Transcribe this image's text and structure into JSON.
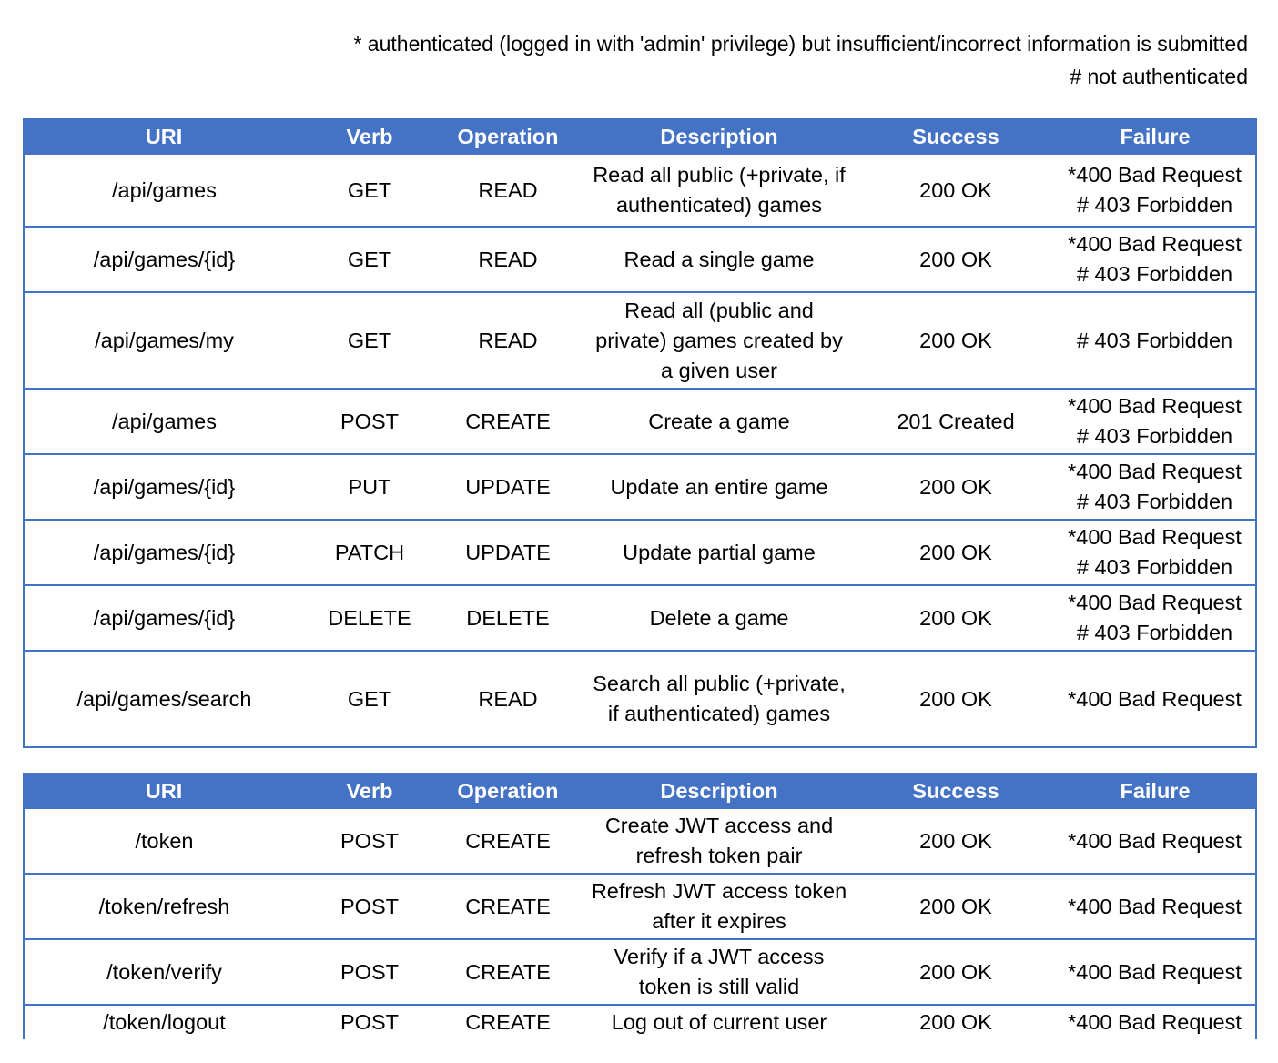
{
  "legend": {
    "line1": "* authenticated (logged in with 'admin' privilege) but insufficient/incorrect information is submitted",
    "line2": "# not authenticated"
  },
  "tables": [
    {
      "headers": [
        "URI",
        "Verb",
        "Operation",
        "Description",
        "Success",
        "Failure"
      ],
      "rows": [
        {
          "uri": "/api/games",
          "verb": "GET",
          "operation": "READ",
          "description": [
            "Read all public (+private, if",
            "authenticated) games"
          ],
          "success": "200 OK",
          "failure": [
            "*400 Bad Request",
            "# 403 Forbidden"
          ]
        },
        {
          "uri": "/api/games/{id}",
          "verb": "GET",
          "operation": "READ",
          "description": [
            "Read a single game"
          ],
          "success": "200 OK",
          "failure": [
            "*400 Bad Request",
            "# 403 Forbidden"
          ]
        },
        {
          "uri": "/api/games/my",
          "verb": "GET",
          "operation": "READ",
          "description": [
            "Read all (public and",
            "private) games created by",
            "a given user"
          ],
          "success": "200 OK",
          "failure": [
            "# 403 Forbidden"
          ]
        },
        {
          "uri": "/api/games",
          "verb": "POST",
          "operation": "CREATE",
          "description": [
            "Create a game"
          ],
          "success": "201 Created",
          "failure": [
            "*400 Bad Request",
            "# 403 Forbidden"
          ]
        },
        {
          "uri": "/api/games/{id}",
          "verb": "PUT",
          "operation": "UPDATE",
          "description": [
            "Update an entire game"
          ],
          "success": "200 OK",
          "failure": [
            "*400 Bad Request",
            "# 403 Forbidden"
          ]
        },
        {
          "uri": "/api/games/{id}",
          "verb": "PATCH",
          "operation": "UPDATE",
          "description": [
            "Update partial game"
          ],
          "success": "200 OK",
          "failure": [
            "*400 Bad Request",
            "# 403 Forbidden"
          ]
        },
        {
          "uri": "/api/games/{id}",
          "verb": "DELETE",
          "operation": "DELETE",
          "description": [
            "Delete a game"
          ],
          "success": "200 OK",
          "failure": [
            "*400 Bad Request",
            "# 403 Forbidden"
          ]
        },
        {
          "uri": "/api/games/search",
          "verb": "GET",
          "operation": "READ",
          "description": [
            "Search all public (+private,",
            "if authenticated) games"
          ],
          "success": "200 OK",
          "failure": [
            "*400 Bad Request"
          ]
        }
      ]
    },
    {
      "headers": [
        "URI",
        "Verb",
        "Operation",
        "Description",
        "Success",
        "Failure"
      ],
      "rows": [
        {
          "uri": "/token",
          "verb": "POST",
          "operation": "CREATE",
          "description": [
            "Create JWT access and",
            "refresh token pair"
          ],
          "success": "200 OK",
          "failure": [
            "*400 Bad Request"
          ]
        },
        {
          "uri": "/token/refresh",
          "verb": "POST",
          "operation": "CREATE",
          "description": [
            "Refresh JWT access token",
            "after it expires"
          ],
          "success": "200 OK",
          "failure": [
            "*400 Bad Request"
          ]
        },
        {
          "uri": "/token/verify",
          "verb": "POST",
          "operation": "CREATE",
          "description": [
            "Verify if a JWT access",
            "token is still valid"
          ],
          "success": "200 OK",
          "failure": [
            "*400 Bad Request"
          ]
        },
        {
          "uri": "/token/logout",
          "verb": "POST",
          "operation": "CREATE",
          "description": [
            "Log out of current user"
          ],
          "success": "200 OK",
          "failure": [
            "*400 Bad Request"
          ]
        }
      ]
    }
  ]
}
